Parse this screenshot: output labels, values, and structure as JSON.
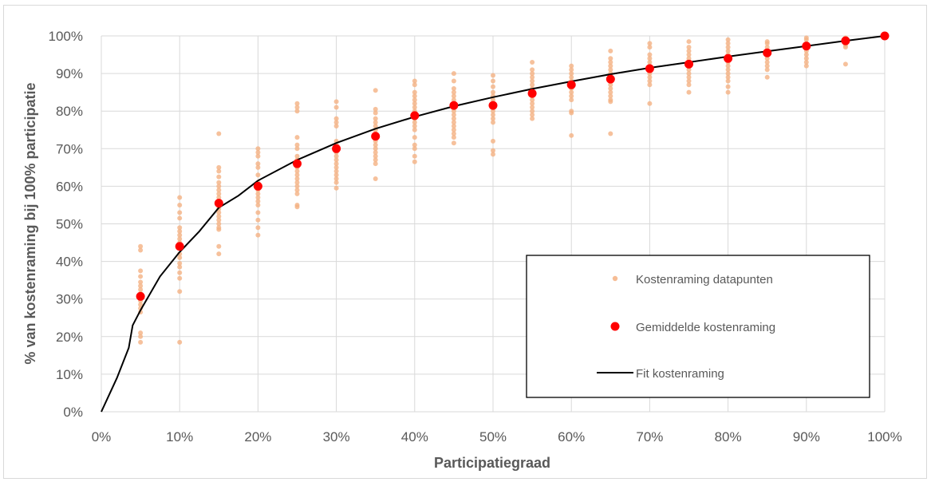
{
  "chart_data": {
    "type": "scatter",
    "xlabel": "Participatiegraad",
    "ylabel": "% van kostenraming bij 100% participatie",
    "xlim": [
      0,
      100
    ],
    "ylim": [
      0,
      100
    ],
    "x_tick_labels": [
      "0%",
      "10%",
      "20%",
      "30%",
      "40%",
      "50%",
      "60%",
      "70%",
      "80%",
      "90%",
      "100%"
    ],
    "y_tick_labels": [
      "0%",
      "10%",
      "20%",
      "30%",
      "40%",
      "50%",
      "60%",
      "70%",
      "80%",
      "90%",
      "100%"
    ],
    "grid": true,
    "legend_position": "bottom-right",
    "series": [
      {
        "name": "Kostenraming datapunten",
        "kind": "scatter",
        "color": "#f4b183",
        "points": [
          [
            5,
            44
          ],
          [
            5,
            43
          ],
          [
            5,
            37.5
          ],
          [
            5,
            36
          ],
          [
            5,
            34.5
          ],
          [
            5,
            33.5
          ],
          [
            5,
            32.5
          ],
          [
            5,
            31.5
          ],
          [
            5,
            30.5
          ],
          [
            5,
            29.5
          ],
          [
            5,
            28.5
          ],
          [
            5,
            27.5
          ],
          [
            5,
            26.5
          ],
          [
            5,
            21
          ],
          [
            5,
            20
          ],
          [
            5,
            18.5
          ],
          [
            10,
            57
          ],
          [
            10,
            55
          ],
          [
            10,
            53
          ],
          [
            10,
            51.5
          ],
          [
            10,
            49
          ],
          [
            10,
            48
          ],
          [
            10,
            47
          ],
          [
            10,
            46
          ],
          [
            10,
            45
          ],
          [
            10,
            44
          ],
          [
            10,
            42
          ],
          [
            10,
            41
          ],
          [
            10,
            39.5
          ],
          [
            10,
            38.5
          ],
          [
            10,
            37
          ],
          [
            10,
            35.5
          ],
          [
            10,
            32
          ],
          [
            10,
            18.5
          ],
          [
            15,
            74
          ],
          [
            15,
            65
          ],
          [
            15,
            64
          ],
          [
            15,
            62.5
          ],
          [
            15,
            61
          ],
          [
            15,
            60
          ],
          [
            15,
            59
          ],
          [
            15,
            58
          ],
          [
            15,
            57
          ],
          [
            15,
            56
          ],
          [
            15,
            55
          ],
          [
            15,
            54
          ],
          [
            15,
            53
          ],
          [
            15,
            52
          ],
          [
            15,
            51
          ],
          [
            15,
            50
          ],
          [
            15,
            49
          ],
          [
            15,
            48.5
          ],
          [
            15,
            44
          ],
          [
            15,
            42
          ],
          [
            20,
            70
          ],
          [
            20,
            69
          ],
          [
            20,
            68
          ],
          [
            20,
            66
          ],
          [
            20,
            65
          ],
          [
            20,
            63
          ],
          [
            20,
            61
          ],
          [
            20,
            60
          ],
          [
            20,
            59
          ],
          [
            20,
            58
          ],
          [
            20,
            57
          ],
          [
            20,
            56
          ],
          [
            20,
            55
          ],
          [
            20,
            53
          ],
          [
            20,
            51
          ],
          [
            20,
            49
          ],
          [
            20,
            47
          ],
          [
            25,
            82
          ],
          [
            25,
            81
          ],
          [
            25,
            80
          ],
          [
            25,
            73
          ],
          [
            25,
            71
          ],
          [
            25,
            70
          ],
          [
            25,
            68
          ],
          [
            25,
            67
          ],
          [
            25,
            66
          ],
          [
            25,
            65
          ],
          [
            25,
            64
          ],
          [
            25,
            63
          ],
          [
            25,
            62
          ],
          [
            25,
            61
          ],
          [
            25,
            60
          ],
          [
            25,
            59
          ],
          [
            25,
            58
          ],
          [
            25,
            55
          ],
          [
            25,
            54.5
          ],
          [
            30,
            82.5
          ],
          [
            30,
            81
          ],
          [
            30,
            78
          ],
          [
            30,
            77
          ],
          [
            30,
            76
          ],
          [
            30,
            72
          ],
          [
            30,
            71
          ],
          [
            30,
            70
          ],
          [
            30,
            69
          ],
          [
            30,
            68
          ],
          [
            30,
            67
          ],
          [
            30,
            66
          ],
          [
            30,
            65
          ],
          [
            30,
            64
          ],
          [
            30,
            63
          ],
          [
            30,
            62
          ],
          [
            30,
            61
          ],
          [
            30,
            59.5
          ],
          [
            35,
            85.5
          ],
          [
            35,
            80.5
          ],
          [
            35,
            79.5
          ],
          [
            35,
            78
          ],
          [
            35,
            77
          ],
          [
            35,
            76
          ],
          [
            35,
            75
          ],
          [
            35,
            74
          ],
          [
            35,
            73
          ],
          [
            35,
            72
          ],
          [
            35,
            71
          ],
          [
            35,
            70
          ],
          [
            35,
            69
          ],
          [
            35,
            68
          ],
          [
            35,
            67
          ],
          [
            35,
            66
          ],
          [
            35,
            62
          ],
          [
            40,
            88
          ],
          [
            40,
            87
          ],
          [
            40,
            85
          ],
          [
            40,
            84
          ],
          [
            40,
            83
          ],
          [
            40,
            82
          ],
          [
            40,
            81
          ],
          [
            40,
            80
          ],
          [
            40,
            79
          ],
          [
            40,
            78
          ],
          [
            40,
            77
          ],
          [
            40,
            76
          ],
          [
            40,
            75
          ],
          [
            40,
            73
          ],
          [
            40,
            71
          ],
          [
            40,
            70
          ],
          [
            40,
            68
          ],
          [
            40,
            66.5
          ],
          [
            45,
            90
          ],
          [
            45,
            88
          ],
          [
            45,
            86
          ],
          [
            45,
            85
          ],
          [
            45,
            84
          ],
          [
            45,
            83
          ],
          [
            45,
            82
          ],
          [
            45,
            81
          ],
          [
            45,
            80
          ],
          [
            45,
            79
          ],
          [
            45,
            78
          ],
          [
            45,
            77
          ],
          [
            45,
            76
          ],
          [
            45,
            75
          ],
          [
            45,
            74
          ],
          [
            45,
            73
          ],
          [
            45,
            71.5
          ],
          [
            50,
            89.5
          ],
          [
            50,
            88
          ],
          [
            50,
            86.5
          ],
          [
            50,
            85
          ],
          [
            50,
            84
          ],
          [
            50,
            83
          ],
          [
            50,
            82
          ],
          [
            50,
            81
          ],
          [
            50,
            80
          ],
          [
            50,
            79
          ],
          [
            50,
            78
          ],
          [
            50,
            77
          ],
          [
            50,
            72
          ],
          [
            50,
            69.5
          ],
          [
            50,
            68.5
          ],
          [
            55,
            93
          ],
          [
            55,
            91
          ],
          [
            55,
            90
          ],
          [
            55,
            89
          ],
          [
            55,
            88
          ],
          [
            55,
            87
          ],
          [
            55,
            86
          ],
          [
            55,
            85
          ],
          [
            55,
            84
          ],
          [
            55,
            83
          ],
          [
            55,
            82
          ],
          [
            55,
            81
          ],
          [
            55,
            80
          ],
          [
            55,
            79
          ],
          [
            55,
            78
          ],
          [
            60,
            92
          ],
          [
            60,
            91
          ],
          [
            60,
            90
          ],
          [
            60,
            89
          ],
          [
            60,
            88
          ],
          [
            60,
            87
          ],
          [
            60,
            86
          ],
          [
            60,
            85
          ],
          [
            60,
            84
          ],
          [
            60,
            83
          ],
          [
            60,
            80
          ],
          [
            60,
            79.5
          ],
          [
            60,
            73.5
          ],
          [
            65,
            96
          ],
          [
            65,
            94
          ],
          [
            65,
            93
          ],
          [
            65,
            92
          ],
          [
            65,
            91
          ],
          [
            65,
            90
          ],
          [
            65,
            89
          ],
          [
            65,
            88
          ],
          [
            65,
            87
          ],
          [
            65,
            86
          ],
          [
            65,
            85
          ],
          [
            65,
            84
          ],
          [
            65,
            83
          ],
          [
            65,
            82.5
          ],
          [
            65,
            74
          ],
          [
            70,
            98
          ],
          [
            70,
            97
          ],
          [
            70,
            95
          ],
          [
            70,
            94
          ],
          [
            70,
            93
          ],
          [
            70,
            92
          ],
          [
            70,
            91
          ],
          [
            70,
            90
          ],
          [
            70,
            89
          ],
          [
            70,
            88
          ],
          [
            70,
            87
          ],
          [
            70,
            82
          ],
          [
            75,
            98.5
          ],
          [
            75,
            97
          ],
          [
            75,
            96
          ],
          [
            75,
            95
          ],
          [
            75,
            94
          ],
          [
            75,
            93
          ],
          [
            75,
            92
          ],
          [
            75,
            91
          ],
          [
            75,
            90
          ],
          [
            75,
            89
          ],
          [
            75,
            88
          ],
          [
            75,
            87
          ],
          [
            75,
            85
          ],
          [
            80,
            99
          ],
          [
            80,
            98
          ],
          [
            80,
            97
          ],
          [
            80,
            96
          ],
          [
            80,
            95
          ],
          [
            80,
            94
          ],
          [
            80,
            93
          ],
          [
            80,
            92
          ],
          [
            80,
            91
          ],
          [
            80,
            90
          ],
          [
            80,
            89
          ],
          [
            80,
            88
          ],
          [
            80,
            86.5
          ],
          [
            80,
            85
          ],
          [
            85,
            98.5
          ],
          [
            85,
            98
          ],
          [
            85,
            97
          ],
          [
            85,
            96
          ],
          [
            85,
            95
          ],
          [
            85,
            94
          ],
          [
            85,
            93
          ],
          [
            85,
            92
          ],
          [
            85,
            91
          ],
          [
            85,
            89
          ],
          [
            90,
            99.5
          ],
          [
            90,
            99
          ],
          [
            90,
            98
          ],
          [
            90,
            97
          ],
          [
            90,
            96
          ],
          [
            90,
            95
          ],
          [
            90,
            94
          ],
          [
            90,
            93
          ],
          [
            90,
            92
          ],
          [
            95,
            99.5
          ],
          [
            95,
            99
          ],
          [
            95,
            98.5
          ],
          [
            95,
            98
          ],
          [
            95,
            97.5
          ],
          [
            95,
            97
          ],
          [
            95,
            92.5
          ],
          [
            100,
            100
          ]
        ]
      },
      {
        "name": "Gemiddelde kostenraming",
        "kind": "scatter",
        "color": "#ff0000",
        "points": [
          [
            5,
            30.7
          ],
          [
            10,
            44
          ],
          [
            15,
            55.5
          ],
          [
            20,
            60
          ],
          [
            25,
            66
          ],
          [
            30,
            70
          ],
          [
            35,
            73.3
          ],
          [
            40,
            78.8
          ],
          [
            45,
            81.5
          ],
          [
            50,
            81.5
          ],
          [
            55,
            84.7
          ],
          [
            60,
            87
          ],
          [
            65,
            88.5
          ],
          [
            70,
            91.3
          ],
          [
            75,
            92.5
          ],
          [
            80,
            94
          ],
          [
            85,
            95.5
          ],
          [
            90,
            97.3
          ],
          [
            95,
            98.7
          ],
          [
            100,
            100
          ]
        ]
      },
      {
        "name": "Fit kostenraming",
        "kind": "line",
        "color": "#000000",
        "points": [
          [
            0,
            0
          ],
          [
            2,
            9
          ],
          [
            3.5,
            17
          ],
          [
            4,
            23
          ],
          [
            5,
            27
          ],
          [
            7.5,
            36
          ],
          [
            10,
            42.5
          ],
          [
            12.5,
            48
          ],
          [
            15,
            54.3
          ],
          [
            17.5,
            57.5
          ],
          [
            20,
            61.5
          ],
          [
            25,
            67
          ],
          [
            30,
            71.5
          ],
          [
            35,
            75.3
          ],
          [
            40,
            78.5
          ],
          [
            45,
            81.3
          ],
          [
            50,
            83.7
          ],
          [
            55,
            85.9
          ],
          [
            60,
            87.9
          ],
          [
            65,
            89.8
          ],
          [
            70,
            91.5
          ],
          [
            75,
            93
          ],
          [
            80,
            94.5
          ],
          [
            85,
            95.9
          ],
          [
            90,
            97.3
          ],
          [
            95,
            98.7
          ],
          [
            100,
            100
          ]
        ]
      }
    ]
  }
}
